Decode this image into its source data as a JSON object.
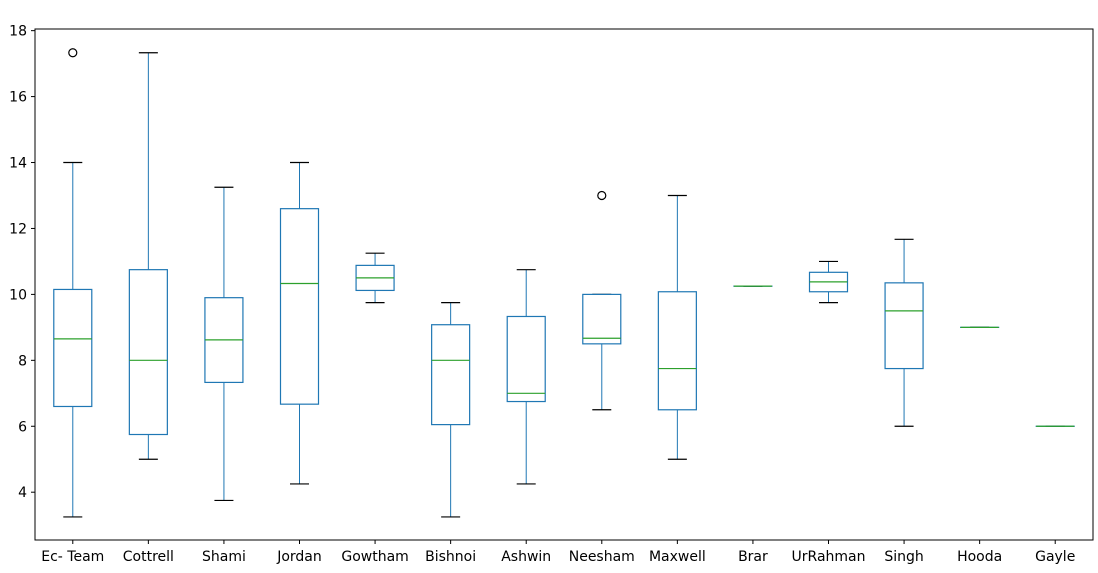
{
  "chart_data": {
    "type": "boxplot",
    "title": "",
    "xlabel": "",
    "ylabel": "",
    "ylim": [
      2.55,
      18.05
    ],
    "yticks": [
      4,
      6,
      8,
      10,
      12,
      14,
      16,
      18
    ],
    "grid": false,
    "legend": "none",
    "colors": {
      "box": "#1f77b4",
      "median": "#2ca02c",
      "cap": "#000000",
      "flier": "#000000"
    },
    "categories": [
      "Ec- Team",
      "Cottrell",
      "Shami",
      "Jordan",
      "Gowtham",
      "Bishnoi",
      "Ashwin",
      "Neesham",
      "Maxwell",
      "Brar",
      "UrRahman",
      "Singh",
      "Hooda",
      "Gayle"
    ],
    "boxes": [
      {
        "whisker_low": 3.25,
        "q1": 6.6,
        "median": 8.65,
        "q3": 10.15,
        "whisker_high": 14.0,
        "fliers": [
          17.33
        ]
      },
      {
        "whisker_low": 5.0,
        "q1": 5.75,
        "median": 8.0,
        "q3": 10.75,
        "whisker_high": 17.33,
        "fliers": []
      },
      {
        "whisker_low": 3.75,
        "q1": 7.33,
        "median": 8.62,
        "q3": 9.9,
        "whisker_high": 13.25,
        "fliers": []
      },
      {
        "whisker_low": 4.25,
        "q1": 6.67,
        "median": 10.33,
        "q3": 12.6,
        "whisker_high": 14.0,
        "fliers": []
      },
      {
        "whisker_low": 9.75,
        "q1": 10.12,
        "median": 10.5,
        "q3": 10.88,
        "whisker_high": 11.25,
        "fliers": []
      },
      {
        "whisker_low": 3.25,
        "q1": 6.05,
        "median": 8.0,
        "q3": 9.08,
        "whisker_high": 9.75,
        "fliers": []
      },
      {
        "whisker_low": 4.25,
        "q1": 6.75,
        "median": 7.0,
        "q3": 9.33,
        "whisker_high": 10.75,
        "fliers": []
      },
      {
        "whisker_low": 6.5,
        "q1": 8.5,
        "median": 8.67,
        "q3": 10.0,
        "whisker_high": 10.0,
        "fliers": [
          13.0
        ]
      },
      {
        "whisker_low": 5.0,
        "q1": 6.5,
        "median": 7.75,
        "q3": 10.08,
        "whisker_high": 13.0,
        "fliers": []
      },
      {
        "whisker_low": 10.25,
        "q1": 10.25,
        "median": 10.25,
        "q3": 10.25,
        "whisker_high": 10.25,
        "fliers": []
      },
      {
        "whisker_low": 9.75,
        "q1": 10.08,
        "median": 10.38,
        "q3": 10.67,
        "whisker_high": 11.0,
        "fliers": []
      },
      {
        "whisker_low": 6.0,
        "q1": 7.75,
        "median": 9.5,
        "q3": 10.35,
        "whisker_high": 11.67,
        "fliers": []
      },
      {
        "whisker_low": 9.0,
        "q1": 9.0,
        "median": 9.0,
        "q3": 9.0,
        "whisker_high": 9.0,
        "fliers": []
      },
      {
        "whisker_low": 6.0,
        "q1": 6.0,
        "median": 6.0,
        "q3": 6.0,
        "whisker_high": 6.0,
        "fliers": []
      }
    ]
  }
}
